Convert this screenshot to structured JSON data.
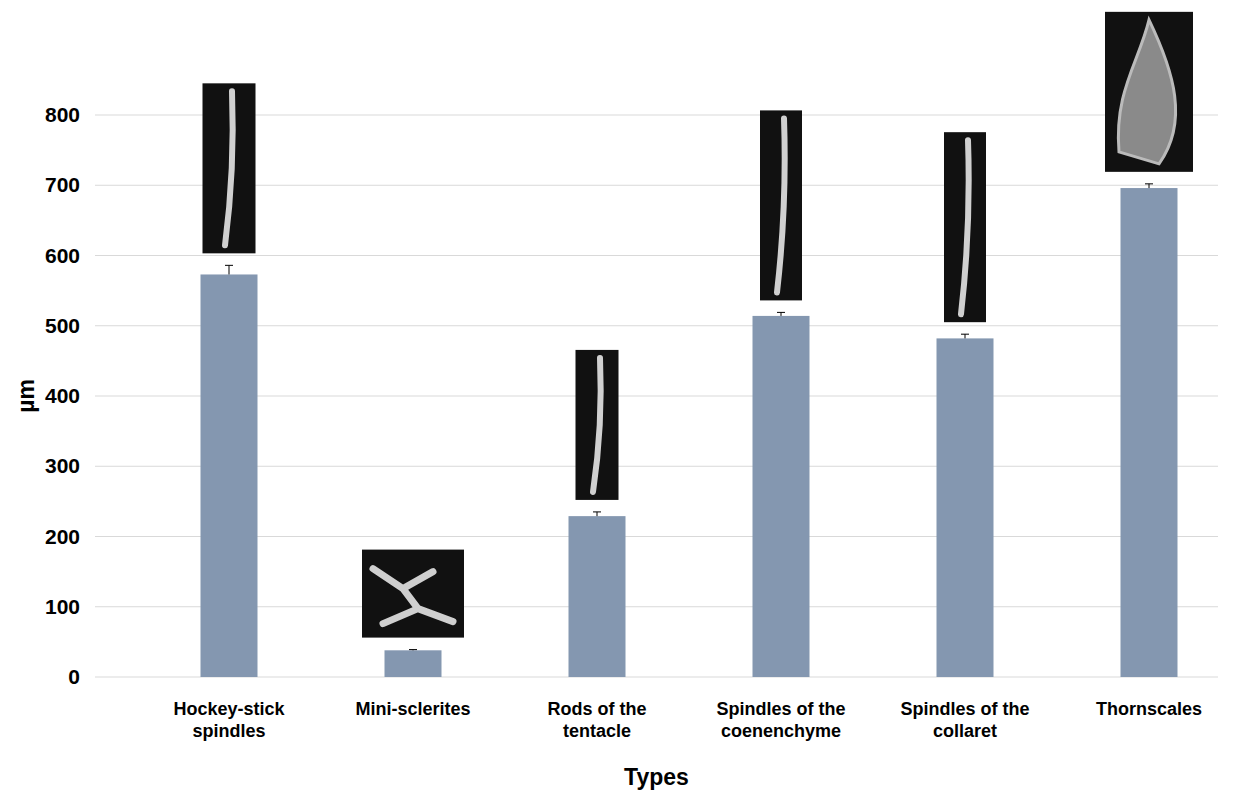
{
  "chart_data": {
    "type": "bar",
    "categories": [
      "Hockey-stick spindles",
      "Mini-sclerites",
      "Rods of the tentacle",
      "Spindles of the coenenchyme",
      "Spindles of the collaret",
      "Thornscales"
    ],
    "values": [
      573,
      38,
      229,
      514,
      482,
      696
    ],
    "errors": [
      13,
      1,
      6,
      5,
      6,
      6
    ],
    "color": "#8497b0",
    "x_label": "Types",
    "y_label": "µm",
    "ylim": [
      0,
      800
    ],
    "yticks": [
      0,
      100,
      200,
      300,
      400,
      500,
      600,
      700,
      800
    ],
    "grid": true
  }
}
